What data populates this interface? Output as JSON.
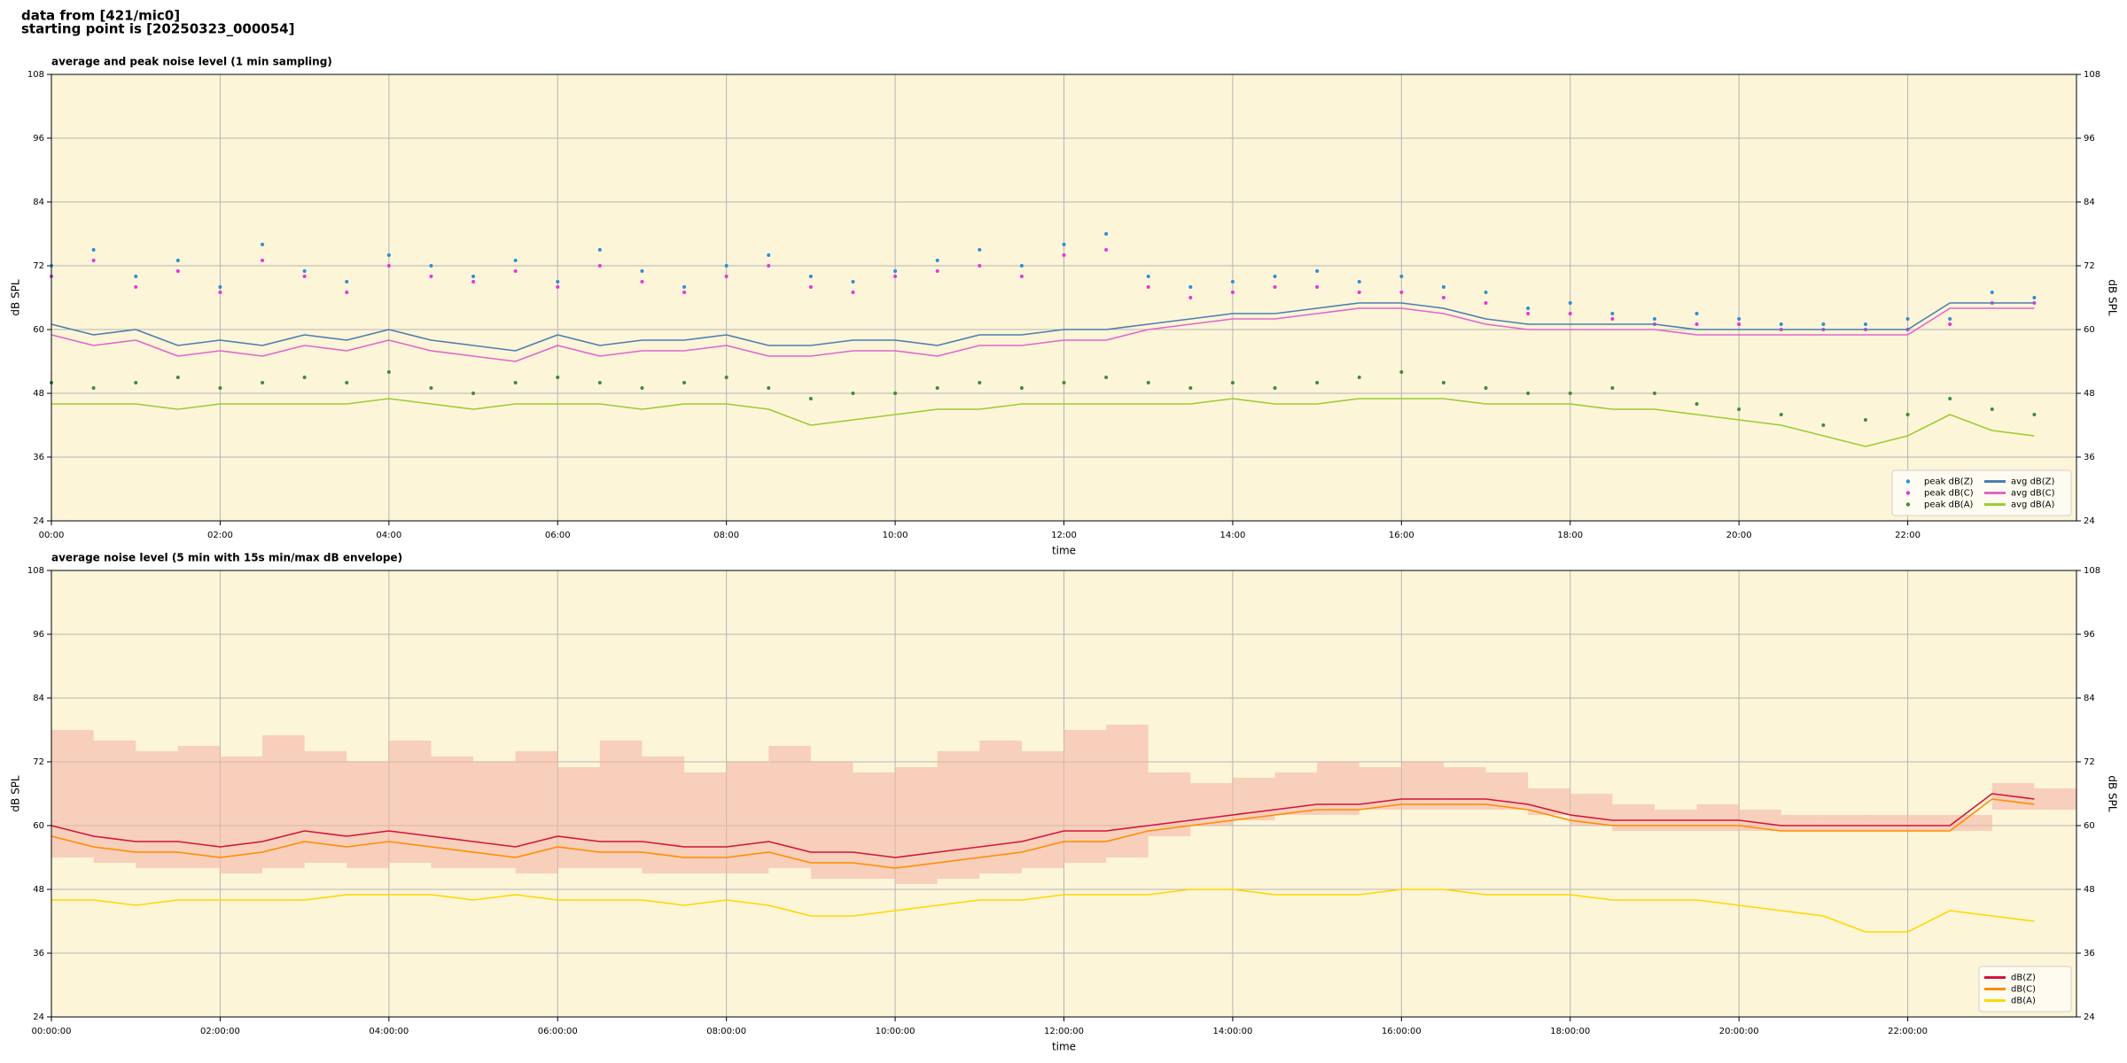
{
  "header": {
    "title": "data from [421/mic0]",
    "subtitle": "starting point is [20250323_000054]"
  },
  "chart_data": [
    {
      "type": "line",
      "title": "average and peak noise level (1 min sampling)",
      "xlabel": "time",
      "ylabel": "dB SPL",
      "facecolor": "#fdf5d8",
      "grid": true,
      "legend": "lower right",
      "legend_columns": 2,
      "xlim": [
        0,
        24
      ],
      "ylim": [
        24,
        108
      ],
      "yticks": [
        24,
        36,
        48,
        60,
        72,
        84,
        96,
        108
      ],
      "xticks": [
        {
          "value": 0,
          "label": "00:00"
        },
        {
          "value": 2,
          "label": "02:00"
        },
        {
          "value": 4,
          "label": "04:00"
        },
        {
          "value": 6,
          "label": "06:00"
        },
        {
          "value": 8,
          "label": "08:00"
        },
        {
          "value": 10,
          "label": "10:00"
        },
        {
          "value": 12,
          "label": "12:00"
        },
        {
          "value": 14,
          "label": "14:00"
        },
        {
          "value": 16,
          "label": "16:00"
        },
        {
          "value": 18,
          "label": "18:00"
        },
        {
          "value": 20,
          "label": "20:00"
        },
        {
          "value": 22,
          "label": "22:00"
        }
      ],
      "x": [
        0,
        0.5,
        1,
        1.5,
        2,
        2.5,
        3,
        3.5,
        4,
        4.5,
        5,
        5.5,
        6,
        6.5,
        7,
        7.5,
        8,
        8.5,
        9,
        9.5,
        10,
        10.5,
        11,
        11.5,
        12,
        12.5,
        13,
        13.5,
        14,
        14.5,
        15,
        15.5,
        16,
        16.5,
        17,
        17.5,
        18,
        18.5,
        19,
        19.5,
        20,
        20.5,
        21,
        21.5,
        22,
        22.5,
        23,
        23.5
      ],
      "series": [
        {
          "name": "peak dB(Z)",
          "type": "scatter",
          "color": "#2a8fd8",
          "values": [
            72,
            75,
            70,
            73,
            68,
            76,
            71,
            69,
            74,
            72,
            70,
            73,
            69,
            75,
            71,
            68,
            72,
            74,
            70,
            69,
            71,
            73,
            75,
            72,
            76,
            78,
            70,
            68,
            69,
            70,
            71,
            69,
            70,
            68,
            67,
            64,
            65,
            63,
            62,
            63,
            62,
            61,
            61,
            61,
            62,
            62,
            67,
            66
          ]
        },
        {
          "name": "peak dB(C)",
          "type": "scatter",
          "color": "#e833e0",
          "values": [
            70,
            73,
            68,
            71,
            67,
            73,
            70,
            67,
            72,
            70,
            69,
            71,
            68,
            72,
            69,
            67,
            70,
            72,
            68,
            67,
            70,
            71,
            72,
            70,
            74,
            75,
            68,
            66,
            67,
            68,
            68,
            67,
            67,
            66,
            65,
            63,
            63,
            62,
            61,
            61,
            61,
            60,
            60,
            60,
            60,
            61,
            65,
            65
          ]
        },
        {
          "name": "peak dB(A)",
          "type": "scatter",
          "color": "#3c8c3c",
          "values": [
            50,
            49,
            50,
            51,
            49,
            50,
            51,
            50,
            52,
            49,
            48,
            50,
            51,
            50,
            49,
            50,
            51,
            49,
            47,
            48,
            48,
            49,
            50,
            49,
            50,
            51,
            50,
            49,
            50,
            49,
            50,
            51,
            52,
            50,
            49,
            48,
            48,
            49,
            48,
            46,
            45,
            44,
            42,
            43,
            44,
            47,
            45,
            44
          ]
        },
        {
          "name": "avg dB(Z)",
          "type": "line",
          "color": "#4a7fb0",
          "values": [
            61,
            59,
            60,
            57,
            58,
            57,
            59,
            58,
            60,
            58,
            57,
            56,
            59,
            57,
            58,
            58,
            59,
            57,
            57,
            58,
            58,
            57,
            59,
            59,
            60,
            60,
            61,
            62,
            63,
            63,
            64,
            65,
            65,
            64,
            62,
            61,
            61,
            61,
            61,
            60,
            60,
            60,
            60,
            60,
            60,
            65,
            65,
            65
          ]
        },
        {
          "name": "avg dB(C)",
          "type": "line",
          "color": "#e066cc",
          "values": [
            59,
            57,
            58,
            55,
            56,
            55,
            57,
            56,
            58,
            56,
            55,
            54,
            57,
            55,
            56,
            56,
            57,
            55,
            55,
            56,
            56,
            55,
            57,
            57,
            58,
            58,
            60,
            61,
            62,
            62,
            63,
            64,
            64,
            63,
            61,
            60,
            60,
            60,
            60,
            59,
            59,
            59,
            59,
            59,
            59,
            64,
            64,
            64
          ]
        },
        {
          "name": "avg dB(A)",
          "type": "line",
          "color": "#9acd32",
          "values": [
            46,
            46,
            46,
            45,
            46,
            46,
            46,
            46,
            47,
            46,
            45,
            46,
            46,
            46,
            45,
            46,
            46,
            45,
            42,
            43,
            44,
            45,
            45,
            46,
            46,
            46,
            46,
            46,
            47,
            46,
            46,
            47,
            47,
            47,
            46,
            46,
            46,
            45,
            45,
            44,
            43,
            42,
            40,
            38,
            40,
            44,
            41,
            40
          ]
        }
      ]
    },
    {
      "type": "line",
      "title": "average noise level (5 min with 15s min/max dB envelope)",
      "xlabel": "time",
      "ylabel": "dB SPL",
      "facecolor": "#fdf5d8",
      "grid": true,
      "legend": "lower right",
      "legend_columns": 1,
      "xlim": [
        0,
        24
      ],
      "ylim": [
        24,
        108
      ],
      "yticks": [
        24,
        36,
        48,
        60,
        72,
        84,
        96,
        108
      ],
      "xticks": [
        {
          "value": 0,
          "label": "00:00:00"
        },
        {
          "value": 2,
          "label": "02:00:00"
        },
        {
          "value": 4,
          "label": "04:00:00"
        },
        {
          "value": 6,
          "label": "06:00:00"
        },
        {
          "value": 8,
          "label": "08:00:00"
        },
        {
          "value": 10,
          "label": "10:00:00"
        },
        {
          "value": 12,
          "label": "12:00:00"
        },
        {
          "value": 14,
          "label": "14:00:00"
        },
        {
          "value": 16,
          "label": "16:00:00"
        },
        {
          "value": 18,
          "label": "18:00:00"
        },
        {
          "value": 20,
          "label": "20:00:00"
        },
        {
          "value": 22,
          "label": "22:00:00"
        }
      ],
      "x": [
        0,
        0.5,
        1,
        1.5,
        2,
        2.5,
        3,
        3.5,
        4,
        4.5,
        5,
        5.5,
        6,
        6.5,
        7,
        7.5,
        8,
        8.5,
        9,
        9.5,
        10,
        10.5,
        11,
        11.5,
        12,
        12.5,
        13,
        13.5,
        14,
        14.5,
        15,
        15.5,
        16,
        16.5,
        17,
        17.5,
        18,
        18.5,
        19,
        19.5,
        20,
        20.5,
        21,
        21.5,
        22,
        22.5,
        23,
        23.5
      ],
      "envelope": {
        "color": "#f4b6a6",
        "lower": [
          54,
          53,
          52,
          52,
          51,
          52,
          53,
          52,
          53,
          52,
          52,
          51,
          52,
          52,
          51,
          51,
          51,
          52,
          50,
          50,
          49,
          50,
          51,
          52,
          53,
          54,
          58,
          60,
          61,
          62,
          62,
          63,
          63,
          63,
          63,
          62,
          60,
          59,
          59,
          59,
          59,
          59,
          59,
          59,
          59,
          59,
          63,
          63
        ],
        "upper": [
          78,
          76,
          74,
          75,
          73,
          77,
          74,
          72,
          76,
          73,
          72,
          74,
          71,
          76,
          73,
          70,
          72,
          75,
          72,
          70,
          71,
          74,
          76,
          74,
          78,
          79,
          70,
          68,
          69,
          70,
          72,
          71,
          72,
          71,
          70,
          67,
          66,
          64,
          63,
          64,
          63,
          62,
          62,
          62,
          62,
          62,
          68,
          67
        ]
      },
      "series": [
        {
          "name": "dB(Z)",
          "type": "line",
          "color": "#d2143c",
          "values": [
            60,
            58,
            57,
            57,
            56,
            57,
            59,
            58,
            59,
            58,
            57,
            56,
            58,
            57,
            57,
            56,
            56,
            57,
            55,
            55,
            54,
            55,
            56,
            57,
            59,
            59,
            60,
            61,
            62,
            63,
            64,
            64,
            65,
            65,
            65,
            64,
            62,
            61,
            61,
            61,
            61,
            60,
            60,
            60,
            60,
            60,
            66,
            65
          ]
        },
        {
          "name": "dB(C)",
          "type": "line",
          "color": "#ff8c00",
          "values": [
            58,
            56,
            55,
            55,
            54,
            55,
            57,
            56,
            57,
            56,
            55,
            54,
            56,
            55,
            55,
            54,
            54,
            55,
            53,
            53,
            52,
            53,
            54,
            55,
            57,
            57,
            59,
            60,
            61,
            62,
            63,
            63,
            64,
            64,
            64,
            63,
            61,
            60,
            60,
            60,
            60,
            59,
            59,
            59,
            59,
            59,
            65,
            64
          ]
        },
        {
          "name": "dB(A)",
          "type": "line",
          "color": "#ffd700",
          "values": [
            46,
            46,
            45,
            46,
            46,
            46,
            46,
            47,
            47,
            47,
            46,
            47,
            46,
            46,
            46,
            45,
            46,
            45,
            43,
            43,
            44,
            45,
            46,
            46,
            47,
            47,
            47,
            48,
            48,
            47,
            47,
            47,
            48,
            48,
            47,
            47,
            47,
            46,
            46,
            46,
            45,
            44,
            43,
            40,
            40,
            44,
            43,
            42
          ]
        }
      ]
    }
  ]
}
